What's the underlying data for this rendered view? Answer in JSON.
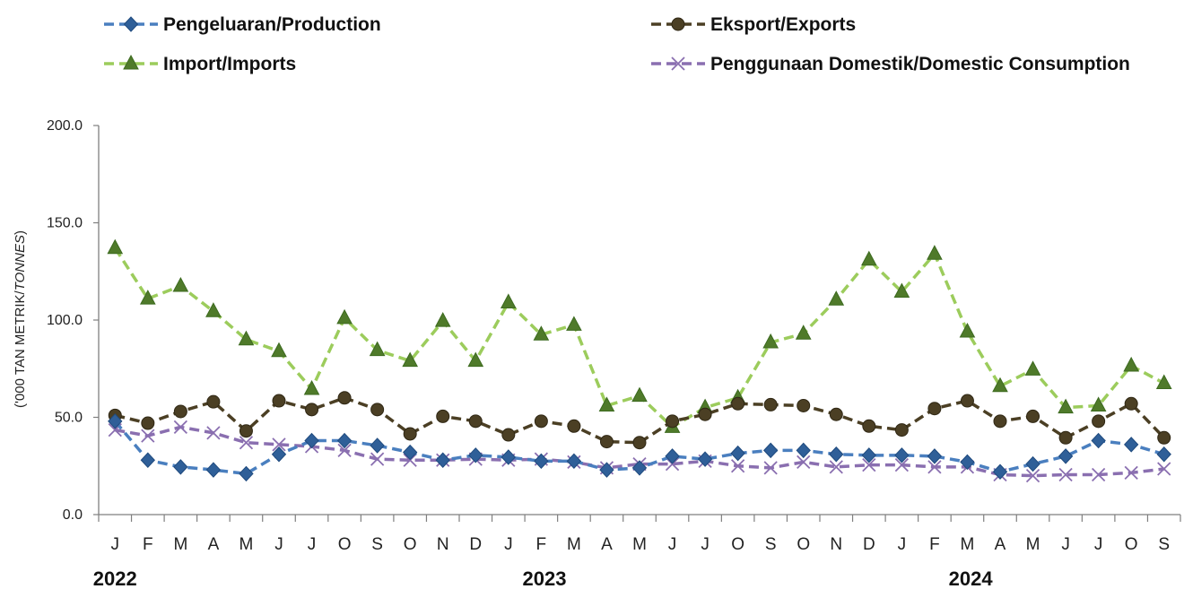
{
  "chart_data": {
    "type": "line",
    "ylabel_prefix": "('000 TAN METRIK/",
    "ylabel_italic": "TONNES",
    "ylabel_suffix": ")",
    "ylim": [
      0,
      200
    ],
    "yticks": [
      "0.0",
      "50.0",
      "100.0",
      "150.0",
      "200.0"
    ],
    "yticks_values": [
      0,
      50,
      100,
      150,
      200
    ],
    "categories": [
      "J",
      "F",
      "M",
      "A",
      "M",
      "J",
      "J",
      "O",
      "S",
      "O",
      "N",
      "D",
      "J",
      "F",
      "M",
      "A",
      "M",
      "J",
      "J",
      "O",
      "S",
      "O",
      "N",
      "D",
      "J",
      "F",
      "M",
      "A",
      "M",
      "J",
      "J",
      "O",
      "S"
    ],
    "years": [
      {
        "label": "2022",
        "index": 0
      },
      {
        "label": "2023",
        "index": 13.1
      },
      {
        "label": "2024",
        "index": 26.1
      }
    ],
    "legend_placement": "top",
    "series": [
      {
        "name": "Pengeluaran/Production",
        "color": "#4a7fbf",
        "marker": "diamond",
        "values": [
          48,
          28,
          24.5,
          23,
          21,
          31,
          38,
          38,
          35.5,
          32,
          28,
          30.5,
          29.5,
          27.5,
          27.5,
          23,
          24,
          30,
          28.5,
          31.5,
          33,
          33,
          31,
          30.5,
          30.5,
          30,
          27,
          22,
          26,
          30,
          38,
          36,
          31
        ]
      },
      {
        "name": "Eksport/Exports",
        "color": "#4b3f24",
        "marker": "circle",
        "values": [
          51,
          47,
          53,
          58,
          43,
          58.5,
          54,
          60,
          54,
          41.5,
          50.5,
          48,
          41,
          48,
          45.5,
          37.5,
          37,
          48,
          51.5,
          57,
          56.5,
          56,
          51.5,
          45.5,
          43.5,
          54.5,
          58.5,
          48,
          50.5,
          39.5,
          48,
          57,
          39.5
        ]
      },
      {
        "name": "Import/Imports",
        "color": "#9ccc5c",
        "marker": "triangle",
        "values": [
          137,
          111,
          117.5,
          104.5,
          90,
          84,
          64.5,
          101,
          84.5,
          79,
          99.5,
          79,
          109,
          92.5,
          97.5,
          56,
          61,
          45,
          55,
          60,
          88.5,
          93,
          110.5,
          131,
          114.5,
          134,
          94,
          66,
          74.5,
          55,
          56,
          76.5,
          67.5
        ]
      },
      {
        "name": "Penggunaan Domestik/Domestic Consumption",
        "color": "#8a6fb0",
        "marker": "x",
        "values": [
          43.5,
          40.5,
          45,
          42,
          37,
          36,
          35,
          33,
          28.5,
          28,
          28,
          28.5,
          28,
          28.5,
          27,
          24,
          26,
          26,
          27.5,
          25,
          24,
          27,
          24.5,
          25.5,
          25.5,
          24.5,
          24.5,
          20.5,
          20,
          20.5,
          20.5,
          21.5,
          23.5
        ]
      }
    ]
  }
}
